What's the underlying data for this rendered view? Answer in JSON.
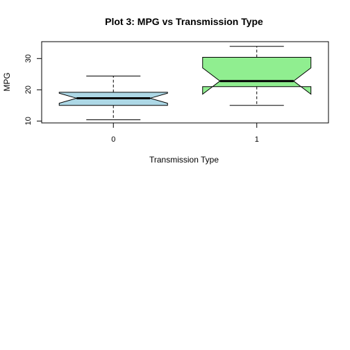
{
  "chart_data": {
    "type": "boxplot",
    "title": "Plot 3: MPG vs Transmission Type",
    "xlabel": "Transmission Type",
    "ylabel": "MPG",
    "notched": true,
    "categories": [
      "0",
      "1"
    ],
    "yticks": [
      10,
      20,
      30
    ],
    "ylim": [
      9.4,
      35.4
    ],
    "boxes": [
      {
        "category": "0",
        "whisker_low": 10.4,
        "q1": 15.0,
        "median": 17.3,
        "q3": 19.2,
        "whisker_high": 24.4,
        "notch_low": 15.7,
        "notch_high": 18.9,
        "fill": "#add8e6"
      },
      {
        "category": "1",
        "whisker_low": 15.0,
        "q1": 21.0,
        "median": 22.8,
        "q3": 30.4,
        "whisker_high": 33.9,
        "notch_low": 18.6,
        "notch_high": 27.0,
        "fill": "#90ee90"
      }
    ]
  }
}
